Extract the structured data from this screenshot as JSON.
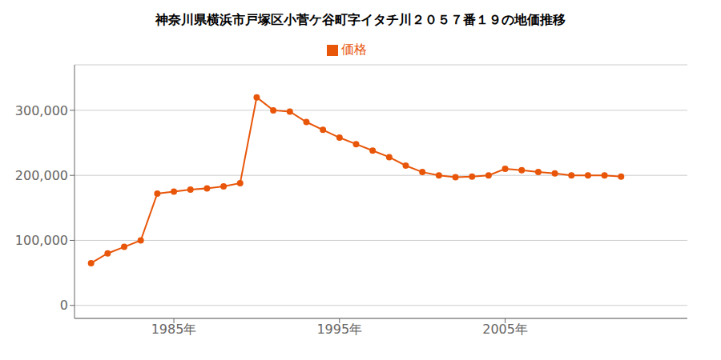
{
  "chart_data": {
    "type": "line",
    "title": "神奈川県横浜市戸塚区小菅ケ谷町字イタチ川２０５７番１９の地価推移",
    "x": [
      1980,
      1981,
      1982,
      1983,
      1984,
      1985,
      1986,
      1987,
      1988,
      1989,
      1990,
      1991,
      1992,
      1993,
      1994,
      1995,
      1996,
      1997,
      1998,
      1999,
      2000,
      2001,
      2002,
      2003,
      2004,
      2005,
      2006,
      2007,
      2008,
      2009,
      2010,
      2011,
      2012
    ],
    "series": [
      {
        "name": "価格",
        "color": "#e8560a",
        "marker": "circle",
        "values": [
          65000,
          80000,
          90000,
          100000,
          172000,
          175000,
          178000,
          180000,
          183000,
          188000,
          320000,
          300000,
          298000,
          282000,
          270000,
          258000,
          248000,
          238000,
          228000,
          215000,
          205000,
          200000,
          197000,
          198000,
          200000,
          210000,
          208000,
          205000,
          203000,
          200000,
          200000,
          200000,
          198000
        ]
      }
    ],
    "xlim": [
      1979,
      2016
    ],
    "xticks": [
      {
        "value": 1985,
        "label": "1985年"
      },
      {
        "value": 1995,
        "label": "1995年"
      },
      {
        "value": 2005,
        "label": "2005年"
      }
    ],
    "ylim": [
      -20000,
      370000
    ],
    "yticks": [
      0,
      {
        "value": 100000,
        "label": "100,000"
      },
      {
        "value": 200000,
        "label": "200,000"
      },
      {
        "value": 300000,
        "label": "300,000"
      }
    ],
    "grid": true,
    "legend": "top"
  }
}
